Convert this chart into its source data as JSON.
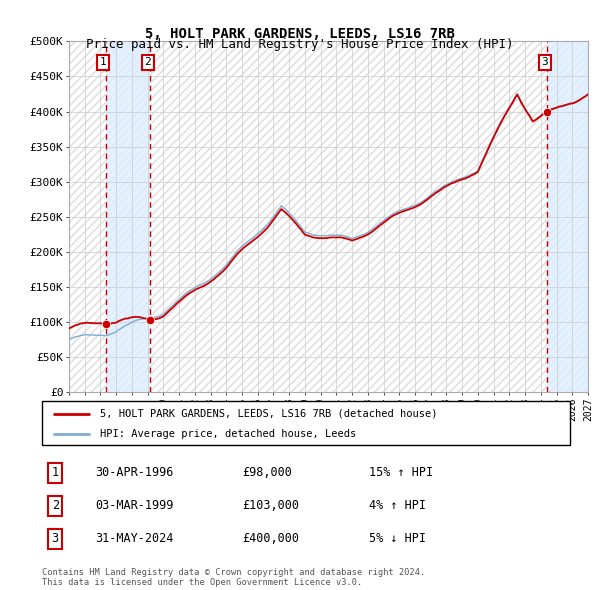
{
  "title1": "5, HOLT PARK GARDENS, LEEDS, LS16 7RB",
  "title2": "Price paid vs. HM Land Registry's House Price Index (HPI)",
  "ylabel_ticks": [
    "£0",
    "£50K",
    "£100K",
    "£150K",
    "£200K",
    "£250K",
    "£300K",
    "£350K",
    "£400K",
    "£450K",
    "£500K"
  ],
  "ytick_vals": [
    0,
    50000,
    100000,
    150000,
    200000,
    250000,
    300000,
    350000,
    400000,
    450000,
    500000
  ],
  "xmin": 1994,
  "xmax": 2027,
  "ymin": 0,
  "ymax": 500000,
  "hpi_color": "#7eadd4",
  "price_color": "#cc0000",
  "transactions": [
    {
      "num": 1,
      "year": 1996.33,
      "price": 98000,
      "date": "30-APR-1996",
      "pct": "15%",
      "dir": "↑"
    },
    {
      "num": 2,
      "year": 1999.17,
      "price": 103000,
      "date": "03-MAR-1999",
      "pct": "4%",
      "dir": "↑"
    },
    {
      "num": 3,
      "year": 2024.42,
      "price": 400000,
      "date": "31-MAY-2024",
      "pct": "5%",
      "dir": "↓"
    }
  ],
  "legend_label1": "5, HOLT PARK GARDENS, LEEDS, LS16 7RB (detached house)",
  "legend_label2": "HPI: Average price, detached house, Leeds",
  "footnote1": "Contains HM Land Registry data © Crown copyright and database right 2024.",
  "footnote2": "This data is licensed under the Open Government Licence v3.0.",
  "shade_color": "#ddeeff",
  "hatch_color": "#dddddd"
}
